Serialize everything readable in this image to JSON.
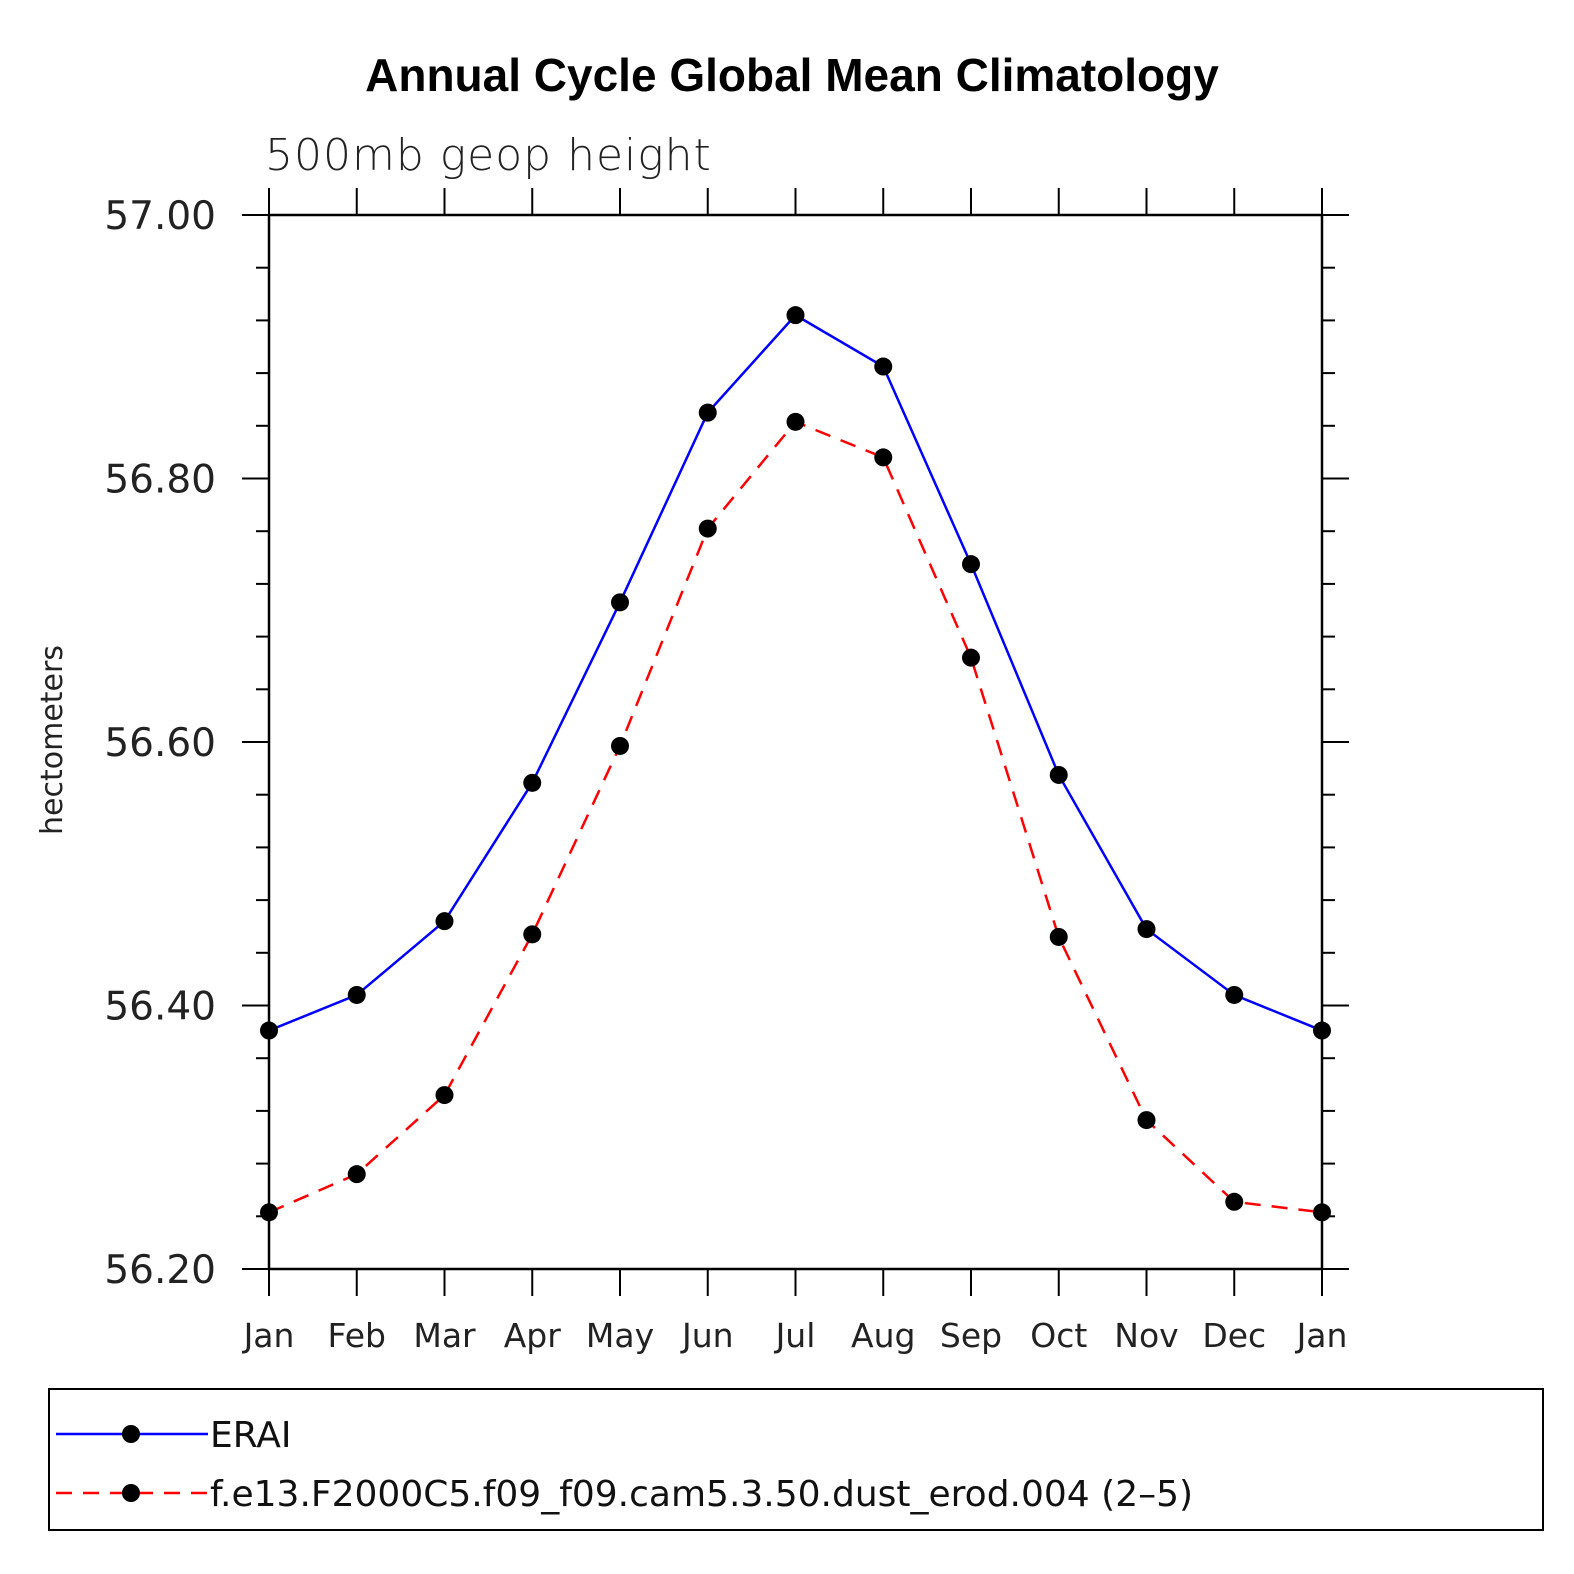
{
  "chart_data": {
    "type": "line",
    "title": "Annual Cycle Global Mean Climatology",
    "subtitle": "500mb geop height",
    "xlabel": "",
    "ylabel": "hectometers",
    "categories": [
      "Jan",
      "Feb",
      "Mar",
      "Apr",
      "May",
      "Jun",
      "Jul",
      "Aug",
      "Sep",
      "Oct",
      "Nov",
      "Dec",
      "Jan"
    ],
    "ylim": [
      56.2,
      57.0
    ],
    "yticks": [
      "56.20",
      "56.40",
      "56.60",
      "56.80",
      "57.00"
    ],
    "grid": false,
    "legend_position": "bottom",
    "series": [
      {
        "name": "ERAI",
        "color": "#0000ff",
        "line_style": "solid",
        "marker": "filled-circle",
        "values": [
          56.381,
          56.408,
          56.464,
          56.569,
          56.706,
          56.85,
          56.924,
          56.885,
          56.735,
          56.575,
          56.458,
          56.408,
          56.381
        ]
      },
      {
        "name": "f.e13.F2000C5.f09_f09.cam5.3.50.dust_erod.004 (2–5)",
        "color": "#ff0000",
        "line_style": "dashed",
        "marker": "filled-circle",
        "values": [
          56.243,
          56.272,
          56.332,
          56.454,
          56.597,
          56.762,
          56.843,
          56.816,
          56.664,
          56.452,
          56.313,
          56.251,
          56.243
        ]
      }
    ]
  }
}
